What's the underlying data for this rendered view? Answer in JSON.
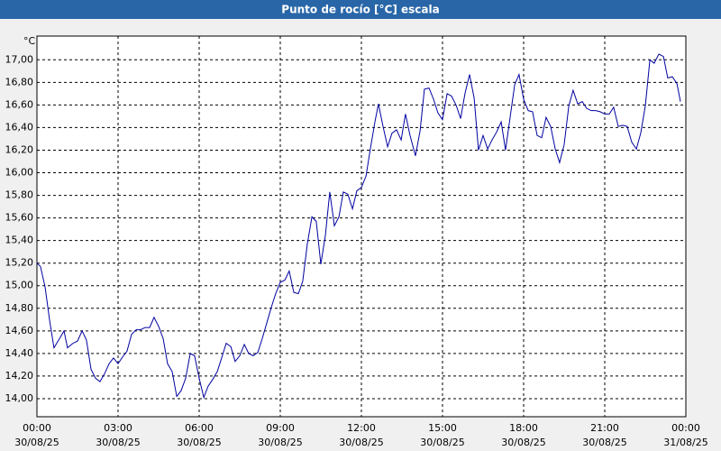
{
  "chart_data": {
    "type": "line",
    "title": "Punto de rocío [°C] escala",
    "ylabel": "°C",
    "color": "#0000a0",
    "grid": true,
    "x": [
      0,
      0.13,
      0.3,
      0.47,
      0.63,
      0.83,
      1.0,
      1.13,
      1.33,
      1.5,
      1.67,
      1.83,
      2.0,
      2.17,
      2.33,
      2.5,
      2.67,
      2.83,
      3.0,
      3.17,
      3.33,
      3.5,
      3.67,
      3.83,
      4.0,
      4.17,
      4.33,
      4.5,
      4.67,
      4.83,
      5.0,
      5.17,
      5.33,
      5.5,
      5.67,
      5.83,
      6.0,
      6.17,
      6.33,
      6.5,
      6.67,
      6.83,
      7.0,
      7.17,
      7.33,
      7.5,
      7.67,
      7.83,
      8.0,
      8.17,
      8.33,
      8.5,
      8.67,
      8.83,
      9.0,
      9.17,
      9.33,
      9.5,
      9.67,
      9.83,
      10.0,
      10.17,
      10.33,
      10.5,
      10.67,
      10.83,
      11.0,
      11.17,
      11.33,
      11.5,
      11.67,
      11.83,
      12.0,
      12.17,
      12.33,
      12.5,
      12.63,
      12.8,
      12.97,
      13.13,
      13.3,
      13.47,
      13.63,
      13.8,
      14.0,
      14.17,
      14.33,
      14.5,
      14.67,
      14.83,
      15.0,
      15.17,
      15.33,
      15.5,
      15.67,
      15.83,
      16.0,
      16.17,
      16.33,
      16.5,
      16.67,
      16.83,
      17.0,
      17.17,
      17.33,
      17.5,
      17.67,
      17.83,
      18.0,
      18.17,
      18.33,
      18.5,
      18.67,
      18.83,
      19.0,
      19.17,
      19.33,
      19.5,
      19.67,
      19.83,
      20.0,
      20.17,
      20.33,
      20.5,
      20.67,
      20.83,
      21.0,
      21.17,
      21.33,
      21.5,
      21.67,
      21.83,
      22.0,
      22.17,
      22.33,
      22.5,
      22.67,
      22.83,
      23.0,
      23.17,
      23.33,
      23.5,
      23.67,
      23.8
    ],
    "values": [
      15.2,
      15.17,
      14.99,
      14.69,
      14.45,
      14.53,
      14.6,
      14.45,
      14.49,
      14.51,
      14.6,
      14.52,
      14.26,
      14.18,
      14.15,
      14.22,
      14.31,
      14.36,
      14.31,
      14.37,
      14.42,
      14.57,
      14.61,
      14.61,
      14.63,
      14.63,
      14.72,
      14.64,
      14.53,
      14.31,
      14.24,
      14.02,
      14.07,
      14.18,
      14.4,
      14.38,
      14.18,
      14.01,
      14.11,
      14.17,
      14.24,
      14.36,
      14.49,
      14.46,
      14.33,
      14.38,
      14.48,
      14.4,
      14.38,
      14.41,
      14.53,
      14.67,
      14.81,
      14.93,
      15.03,
      15.05,
      15.13,
      14.94,
      14.93,
      15.04,
      15.37,
      15.61,
      15.57,
      15.19,
      15.45,
      15.83,
      15.53,
      15.61,
      15.83,
      15.81,
      15.68,
      15.84,
      15.87,
      15.97,
      16.21,
      16.45,
      16.61,
      16.41,
      16.23,
      16.35,
      16.38,
      16.29,
      16.52,
      16.33,
      16.15,
      16.37,
      16.74,
      16.75,
      16.65,
      16.53,
      16.47,
      16.7,
      16.68,
      16.6,
      16.48,
      16.7,
      16.87,
      16.66,
      16.2,
      16.33,
      16.21,
      16.29,
      16.36,
      16.45,
      16.2,
      16.49,
      16.78,
      16.87,
      16.65,
      16.55,
      16.54,
      16.33,
      16.31,
      16.49,
      16.41,
      16.21,
      16.09,
      16.25,
      16.59,
      16.73,
      16.61,
      16.63,
      16.57,
      16.55,
      16.55,
      16.54,
      16.52,
      16.52,
      16.58,
      16.41,
      16.42,
      16.41,
      16.27,
      16.21,
      16.35,
      16.59,
      17.0,
      16.97,
      17.05,
      17.03,
      16.84,
      16.85,
      16.79,
      16.63
    ],
    "xlim": [
      0,
      24
    ],
    "xticks": [
      {
        "value": 0,
        "label": "00:00",
        "date": "30/08/25"
      },
      {
        "value": 3,
        "label": "03:00",
        "date": "30/08/25"
      },
      {
        "value": 6,
        "label": "06:00",
        "date": "30/08/25"
      },
      {
        "value": 9,
        "label": "09:00",
        "date": "30/08/25"
      },
      {
        "value": 12,
        "label": "12:00",
        "date": "30/08/25"
      },
      {
        "value": 15,
        "label": "15:00",
        "date": "30/08/25"
      },
      {
        "value": 18,
        "label": "18:00",
        "date": "30/08/25"
      },
      {
        "value": 21,
        "label": "21:00",
        "date": "30/08/25"
      },
      {
        "value": 24,
        "label": "00:00",
        "date": "31/08/25"
      }
    ],
    "ylim": [
      13.84,
      17.21
    ],
    "yticks": [
      {
        "value": 14,
        "label": "14,00"
      },
      {
        "value": 14.2,
        "label": "14,20"
      },
      {
        "value": 14.4,
        "label": "14,40"
      },
      {
        "value": 14.6,
        "label": "14,60"
      },
      {
        "value": 14.8,
        "label": "14,80"
      },
      {
        "value": 15,
        "label": "15,00"
      },
      {
        "value": 15.2,
        "label": "15,20"
      },
      {
        "value": 15.4,
        "label": "15,40"
      },
      {
        "value": 15.6,
        "label": "15,60"
      },
      {
        "value": 15.8,
        "label": "15,80"
      },
      {
        "value": 16,
        "label": "16,00"
      },
      {
        "value": 16.2,
        "label": "16,20"
      },
      {
        "value": 16.4,
        "label": "16,40"
      },
      {
        "value": 16.6,
        "label": "16,60"
      },
      {
        "value": 16.8,
        "label": "16,80"
      },
      {
        "value": 17,
        "label": "17,00"
      }
    ]
  }
}
